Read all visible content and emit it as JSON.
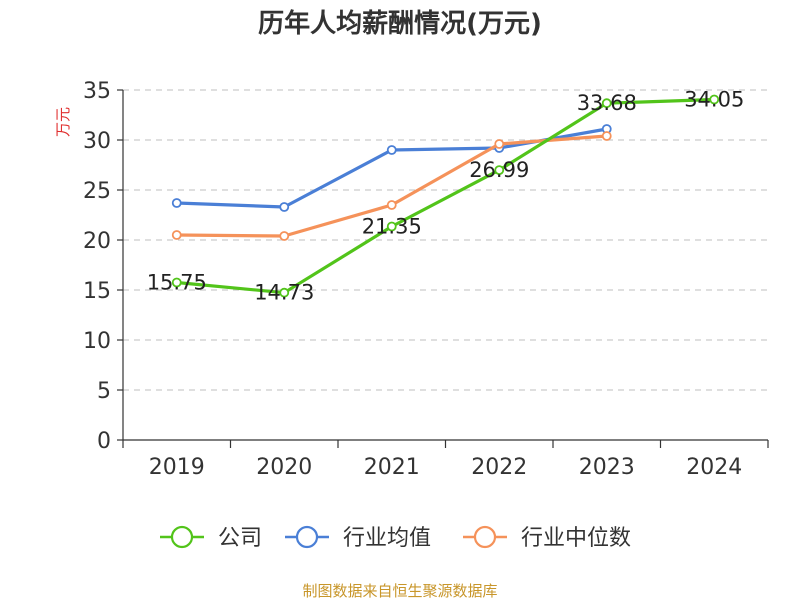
{
  "chart_data": {
    "type": "line",
    "title": "历年人均薪酬情况(万元)",
    "ylabel": "万元",
    "xlabel": "",
    "categories": [
      "2019",
      "2020",
      "2021",
      "2022",
      "2023",
      "2024"
    ],
    "ylim": [
      0,
      35
    ],
    "yticks": [
      0,
      5,
      10,
      15,
      20,
      25,
      30,
      35
    ],
    "grid": true,
    "legend_position": "bottom",
    "series": [
      {
        "name": "公司",
        "color": "#52c41a",
        "values": [
          15.75,
          14.73,
          21.35,
          26.99,
          33.68,
          34.05
        ],
        "labels": [
          "15.75",
          "14.73",
          "21.35",
          "26.99",
          "33.68",
          "34.05"
        ]
      },
      {
        "name": "行业均值",
        "color": "#4a7fd6",
        "values": [
          23.7,
          23.3,
          29.0,
          29.2,
          31.1,
          null
        ]
      },
      {
        "name": "行业中位数",
        "color": "#f5925a",
        "values": [
          20.5,
          20.4,
          23.5,
          29.6,
          30.4,
          null
        ]
      }
    ]
  },
  "source": "制图数据来自恒生聚源数据库",
  "colors": {
    "axis": "#333333",
    "grid": "#cccccc",
    "ylabel": "#e03030",
    "source": "#c8962a"
  }
}
